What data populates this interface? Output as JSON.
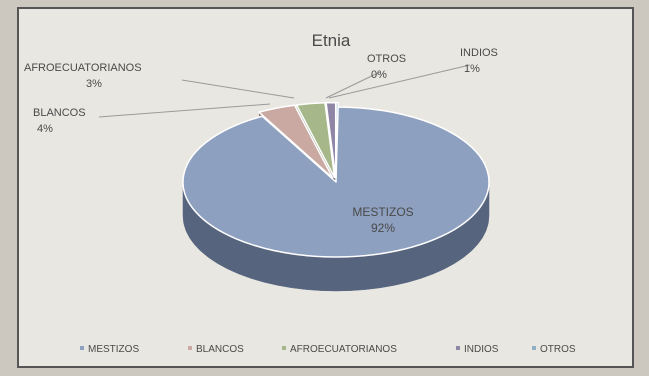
{
  "chart_data": {
    "type": "pie",
    "title": "Etnia",
    "slices": [
      {
        "label": "MESTIZOS",
        "value": 92,
        "value_label": "92%",
        "color": "#8ea0bf",
        "side_color": "#56647e"
      },
      {
        "label": "BLANCOS",
        "value": 4,
        "value_label": "4%",
        "color": "#c9a9a2",
        "side_color": "#8a6f69"
      },
      {
        "label": "AFROECUATORIANOS",
        "value": 3,
        "value_label": "3%",
        "color": "#a6b88a",
        "side_color": "#6d7d59"
      },
      {
        "label": "INDIOS",
        "value": 1,
        "value_label": "1%",
        "color": "#8f86a6",
        "side_color": "#5c556f"
      },
      {
        "label": "OTROS",
        "value": 0,
        "value_label": "0%",
        "color": "#8fb0c4",
        "side_color": "#5b7686"
      }
    ],
    "legend_position": "bottom",
    "three_d": true
  }
}
